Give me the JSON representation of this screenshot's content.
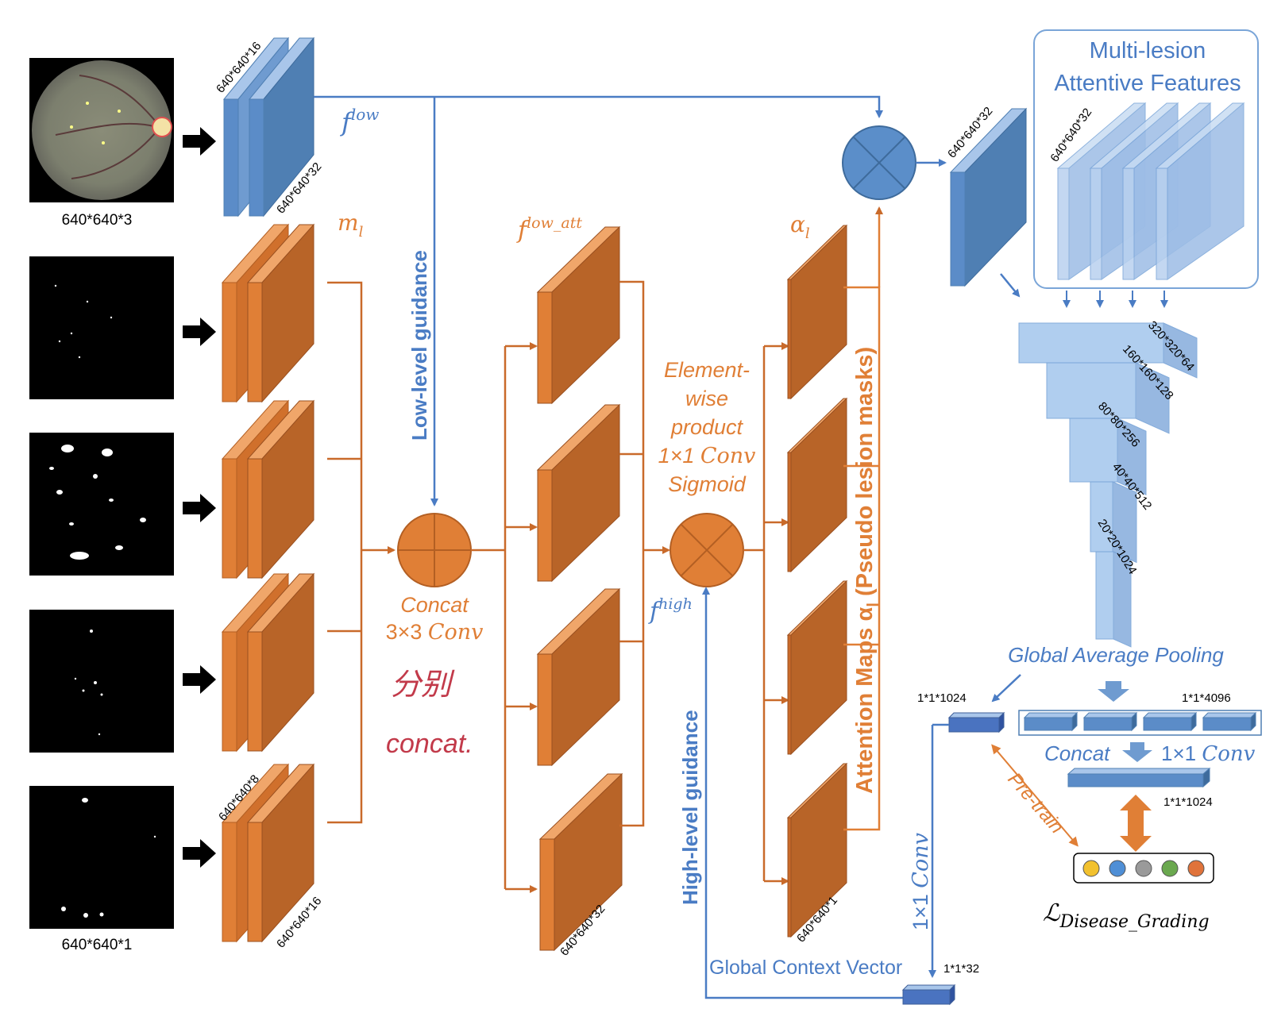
{
  "colors": {
    "blue_dark": "#4f7fb3",
    "blue_light": "#a9c6ea",
    "orange": "#d9762f",
    "orange_dark": "#b35f23",
    "blue_line": "#4a7cc4",
    "orange_line": "#c96a2a",
    "handwriting": "#c23a4a"
  },
  "inputs": {
    "image_dim": "640*640*3",
    "mask_dim": "640*640*1"
  },
  "encoder": {
    "f_low_label": "f",
    "f_low_sup": "low",
    "dim_in": "640*640*16",
    "dim_out": "640*640*32"
  },
  "mask_branch": {
    "m_label": "m",
    "m_sub": "l",
    "dim_top": "640*640*8",
    "dim_bottom": "640*640*16"
  },
  "concat_block": {
    "line1": "Concat",
    "line2_prefix": "3×3 ",
    "line2_italic": "Conv",
    "handwriting1": "分别",
    "handwriting2": "concat."
  },
  "low_att": {
    "label": "f",
    "sup": "low_att",
    "dim": "640*640*32"
  },
  "elementwise": {
    "line1": "Element-",
    "line2": "wise",
    "line3": "product",
    "line4_prefix": "1×1 ",
    "line4_italic": "Conv",
    "line5": "Sigmoid"
  },
  "f_high": {
    "label": "f",
    "sup": "high"
  },
  "alpha": {
    "label": "α",
    "sub": "l",
    "dim": "640*640*1",
    "attention_text": "Attention Maps α",
    "attention_sub": "l",
    "attention_paren": " (Pseudo lesion masks)"
  },
  "guidance": {
    "low": "Low-level guidance",
    "high": "High-level guidance"
  },
  "output": {
    "dim": "640*640*32"
  },
  "multilesion": {
    "title_line1": "Multi-lesion",
    "title_line2": "Attentive Features",
    "dim": "640*640*32"
  },
  "pyramid": {
    "dims": [
      "320*320*64",
      "160*160*128",
      "80*80*256",
      "40*40*512",
      "20*20*1024"
    ]
  },
  "pooling": {
    "label": "Global Average Pooling",
    "vec_1024": "1*1*1024",
    "vec_4096": "1*1*4096",
    "concat": "Concat",
    "conv_prefix": "1×1 ",
    "conv_italic": "Conv",
    "vec_1024_b": "1*1*1024",
    "pretrain": "Pre-train",
    "loss_symbol": "ℒ",
    "loss_sub": "Disease_Grading"
  },
  "context": {
    "label": "Global Context Vector",
    "dim": "1*1*32",
    "conv_prefix": "1×1 ",
    "conv_italic": "Conv"
  },
  "loss_dots": [
    "#f2c12e",
    "#4f8fd6",
    "#9a9a9a",
    "#6aa84f",
    "#e0733a"
  ]
}
